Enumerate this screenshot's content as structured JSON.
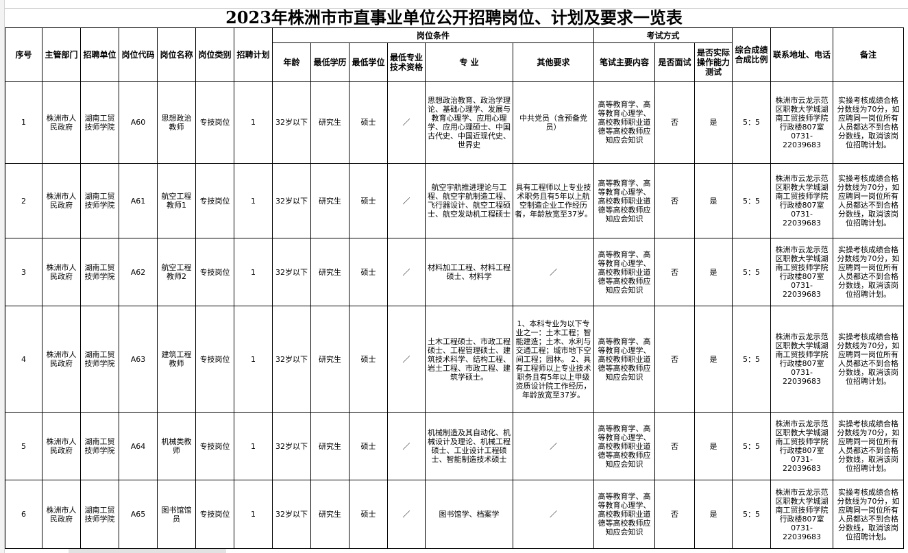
{
  "title": "2023年株洲市市直事业单位公开招聘岗位、计划及要求一览表",
  "headers": {
    "seq": "序号",
    "dept": "主管部门",
    "unit": "招聘单位",
    "code": "岗位代码",
    "name": "岗位名称",
    "type": "岗位类别",
    "plan": "招聘计划",
    "conditions": "岗位条件",
    "age": "年龄",
    "edu": "最低学历",
    "degree": "最低学位",
    "cert": "最低专业技术资格",
    "major": "专 业",
    "other": "其他要求",
    "exam": "考试方式",
    "written": "笔试主要内容",
    "interview": "是否面试",
    "practical": "是否实际操作能力测试",
    "ratio": "综合成绩合成比例",
    "contact": "联系地址、电话",
    "remark": "备注"
  },
  "rows": [
    {
      "seq": "1",
      "dept": "株洲市人民政府",
      "unit": "湖南工贸技师学院",
      "code": "A60",
      "name": "思想政治教师",
      "type": "专技岗位",
      "plan": "1",
      "age": "32岁以下",
      "edu": "研究生",
      "degree": "硕士",
      "cert": "／",
      "major": "思想政治教育、政治学理论、基础心理学、发展与教育心理学、应用心理学、应用心理硕士、中国古代史、中国近现代史、世界史",
      "other": "中共党员（含预备党员）",
      "written": "高等教育学、高等教育心理学、高校教师职业道德等高校教师应知应会知识",
      "interview": "否",
      "practical": "是",
      "ratio": "5：5",
      "contact": "株洲市云龙示范区职教大学城湖南工贸技师学院行政楼807室",
      "phone": "0731-22039683",
      "remark": "实操考核成绩合格分数线为70分，如应聘同一岗位所有人员都达不到合格分数线，取消该岗位招聘计划。"
    },
    {
      "seq": "2",
      "dept": "株洲市人民政府",
      "unit": "湖南工贸技师学院",
      "code": "A61",
      "name": "航空工程教师1",
      "type": "专技岗位",
      "plan": "1",
      "age": "32岁以下",
      "edu": "研究生",
      "degree": "硕士",
      "cert": "／",
      "major": "航空宇航推进理论与工程、航空宇航制造工程、飞行器设计、航空工程硕士、航空发动机工程硕士",
      "other": "具有工程师以上专业技术职务且有5年以上航空制造企业工作经历者，年龄放宽至37岁。",
      "written": "高等教育学、高等教育心理学、高校教师职业道德等高校教师应知应会知识",
      "interview": "否",
      "practical": "是",
      "ratio": "5：5",
      "contact": "株洲市云龙示范区职教大学城湖南工贸技师学院行政楼807室",
      "phone": "0731-22039683",
      "remark": "实操考核成绩合格分数线为70分，如应聘同一岗位所有人员都达不到合格分数线，取消该岗位招聘计划。"
    },
    {
      "seq": "3",
      "dept": "株洲市人民政府",
      "unit": "湖南工贸技师学院",
      "code": "A62",
      "name": "航空工程教师2",
      "type": "专技岗位",
      "plan": "1",
      "age": "32岁以下",
      "edu": "研究生",
      "degree": "硕士",
      "cert": "／",
      "major": "材料加工工程、材料工程硕士、材料学",
      "other": "／",
      "written": "高等教育学、高等教育心理学、高校教师职业道德等高校教师应知应会知识",
      "interview": "否",
      "practical": "是",
      "ratio": "5：5",
      "contact": "株洲市云龙示范区职教大学城湖南工贸技师学院行政楼807室",
      "phone": "0731-22039683",
      "remark": "实操考核成绩合格分数线为70分，如应聘同一岗位所有人员都达不到合格分数线，取消该岗位招聘计划。"
    },
    {
      "seq": "4",
      "dept": "株洲市人民政府",
      "unit": "湖南工贸技师学院",
      "code": "A63",
      "name": "建筑工程教师",
      "type": "专技岗位",
      "plan": "1",
      "age": "32岁以下",
      "edu": "研究生",
      "degree": "硕士",
      "cert": "／",
      "major": "土木工程硕士、市政工程硕士、工程管理硕士、建筑技术科学、结构工程、岩土工程、市政工程、建筑学硕士。",
      "other": "1、本科专业为以下专业之一：土木工程；智能建造；土木、水利与交通工程；城市地下空间工程；园林。 2、具有工程师以上专业技术职务且有5年以上甲级资质设计院工作经历，年龄放宽至37岁。",
      "written": "高等教育学、高等教育心理学、高校教师职业道德等高校教师应知应会知识",
      "interview": "否",
      "practical": "是",
      "ratio": "5：5",
      "contact": "株洲市云龙示范区职教大学城湖南工贸技师学院行政楼807室",
      "phone": "0731-22039683",
      "remark": "实操考核成绩合格分数线为70分，如应聘同一岗位所有人员都达不到合格分数线，取消该岗位招聘计划。"
    },
    {
      "seq": "5",
      "dept": "株洲市人民政府",
      "unit": "湖南工贸技师学院",
      "code": "A64",
      "name": "机械类教师",
      "type": "专技岗位",
      "plan": "1",
      "age": "32岁以下",
      "edu": "研究生",
      "degree": "硕士",
      "cert": "／",
      "major": "机械制造及其自动化、机械设计及理论、机械工程硕士、工业设计工程硕士、智能制造技术硕士",
      "other": "／",
      "written": "高等教育学、高等教育心理学、高校教师职业道德等高校教师应知应会知识",
      "interview": "否",
      "practical": "是",
      "ratio": "5：5",
      "contact": "株洲市云龙示范区职教大学城湖南工贸技师学院行政楼807室",
      "phone": "0731-22039683",
      "remark": "实操考核成绩合格分数线为70分，如应聘同一岗位所有人员都达不到合格分数线，取消该岗位招聘计划。"
    },
    {
      "seq": "6",
      "dept": "株洲市人民政府",
      "unit": "湖南工贸技师学院",
      "code": "A65",
      "name": "图书馆馆员",
      "type": "专技岗位",
      "plan": "1",
      "age": "32岁以下",
      "edu": "研究生",
      "degree": "硕士",
      "cert": "／",
      "major": "图书馆学、档案学",
      "other": "／",
      "written": "高等教育学、高等教育心理学、高校教师职业道德等高校教师应知应会知识",
      "interview": "否",
      "practical": "是",
      "ratio": "5：5",
      "contact": "株洲市云龙示范区职教大学城湖南工贸技师学院行政楼807室",
      "phone": "0731-22039683",
      "remark": "实操考核成绩合格分数线为70分，如应聘同一岗位所有人员都达不到合格分数线，取消该岗位招聘计划。"
    }
  ]
}
